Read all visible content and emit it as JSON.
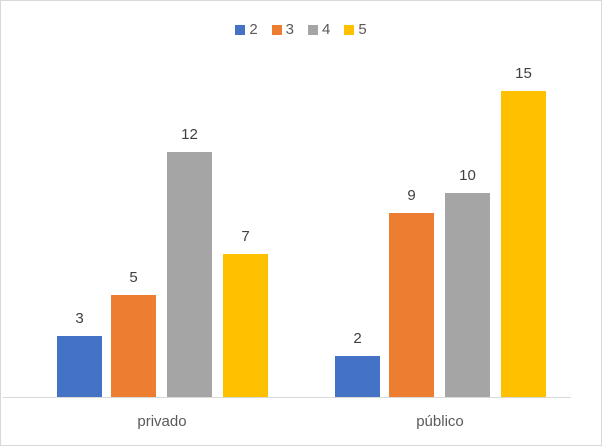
{
  "chart_data": {
    "type": "bar",
    "title": "",
    "xlabel": "",
    "ylabel": "",
    "categories": [
      "privado",
      "público"
    ],
    "series": [
      {
        "name": "2",
        "color": "#4472C4",
        "values": [
          3,
          2
        ]
      },
      {
        "name": "3",
        "color": "#ED7D31",
        "values": [
          5,
          9
        ]
      },
      {
        "name": "4",
        "color": "#A5A5A5",
        "values": [
          12,
          10
        ]
      },
      {
        "name": "5",
        "color": "#FFC000",
        "values": [
          7,
          15
        ]
      }
    ],
    "ylim": [
      0,
      15
    ],
    "grid": false,
    "legend_position": "top",
    "data_labels": true
  }
}
